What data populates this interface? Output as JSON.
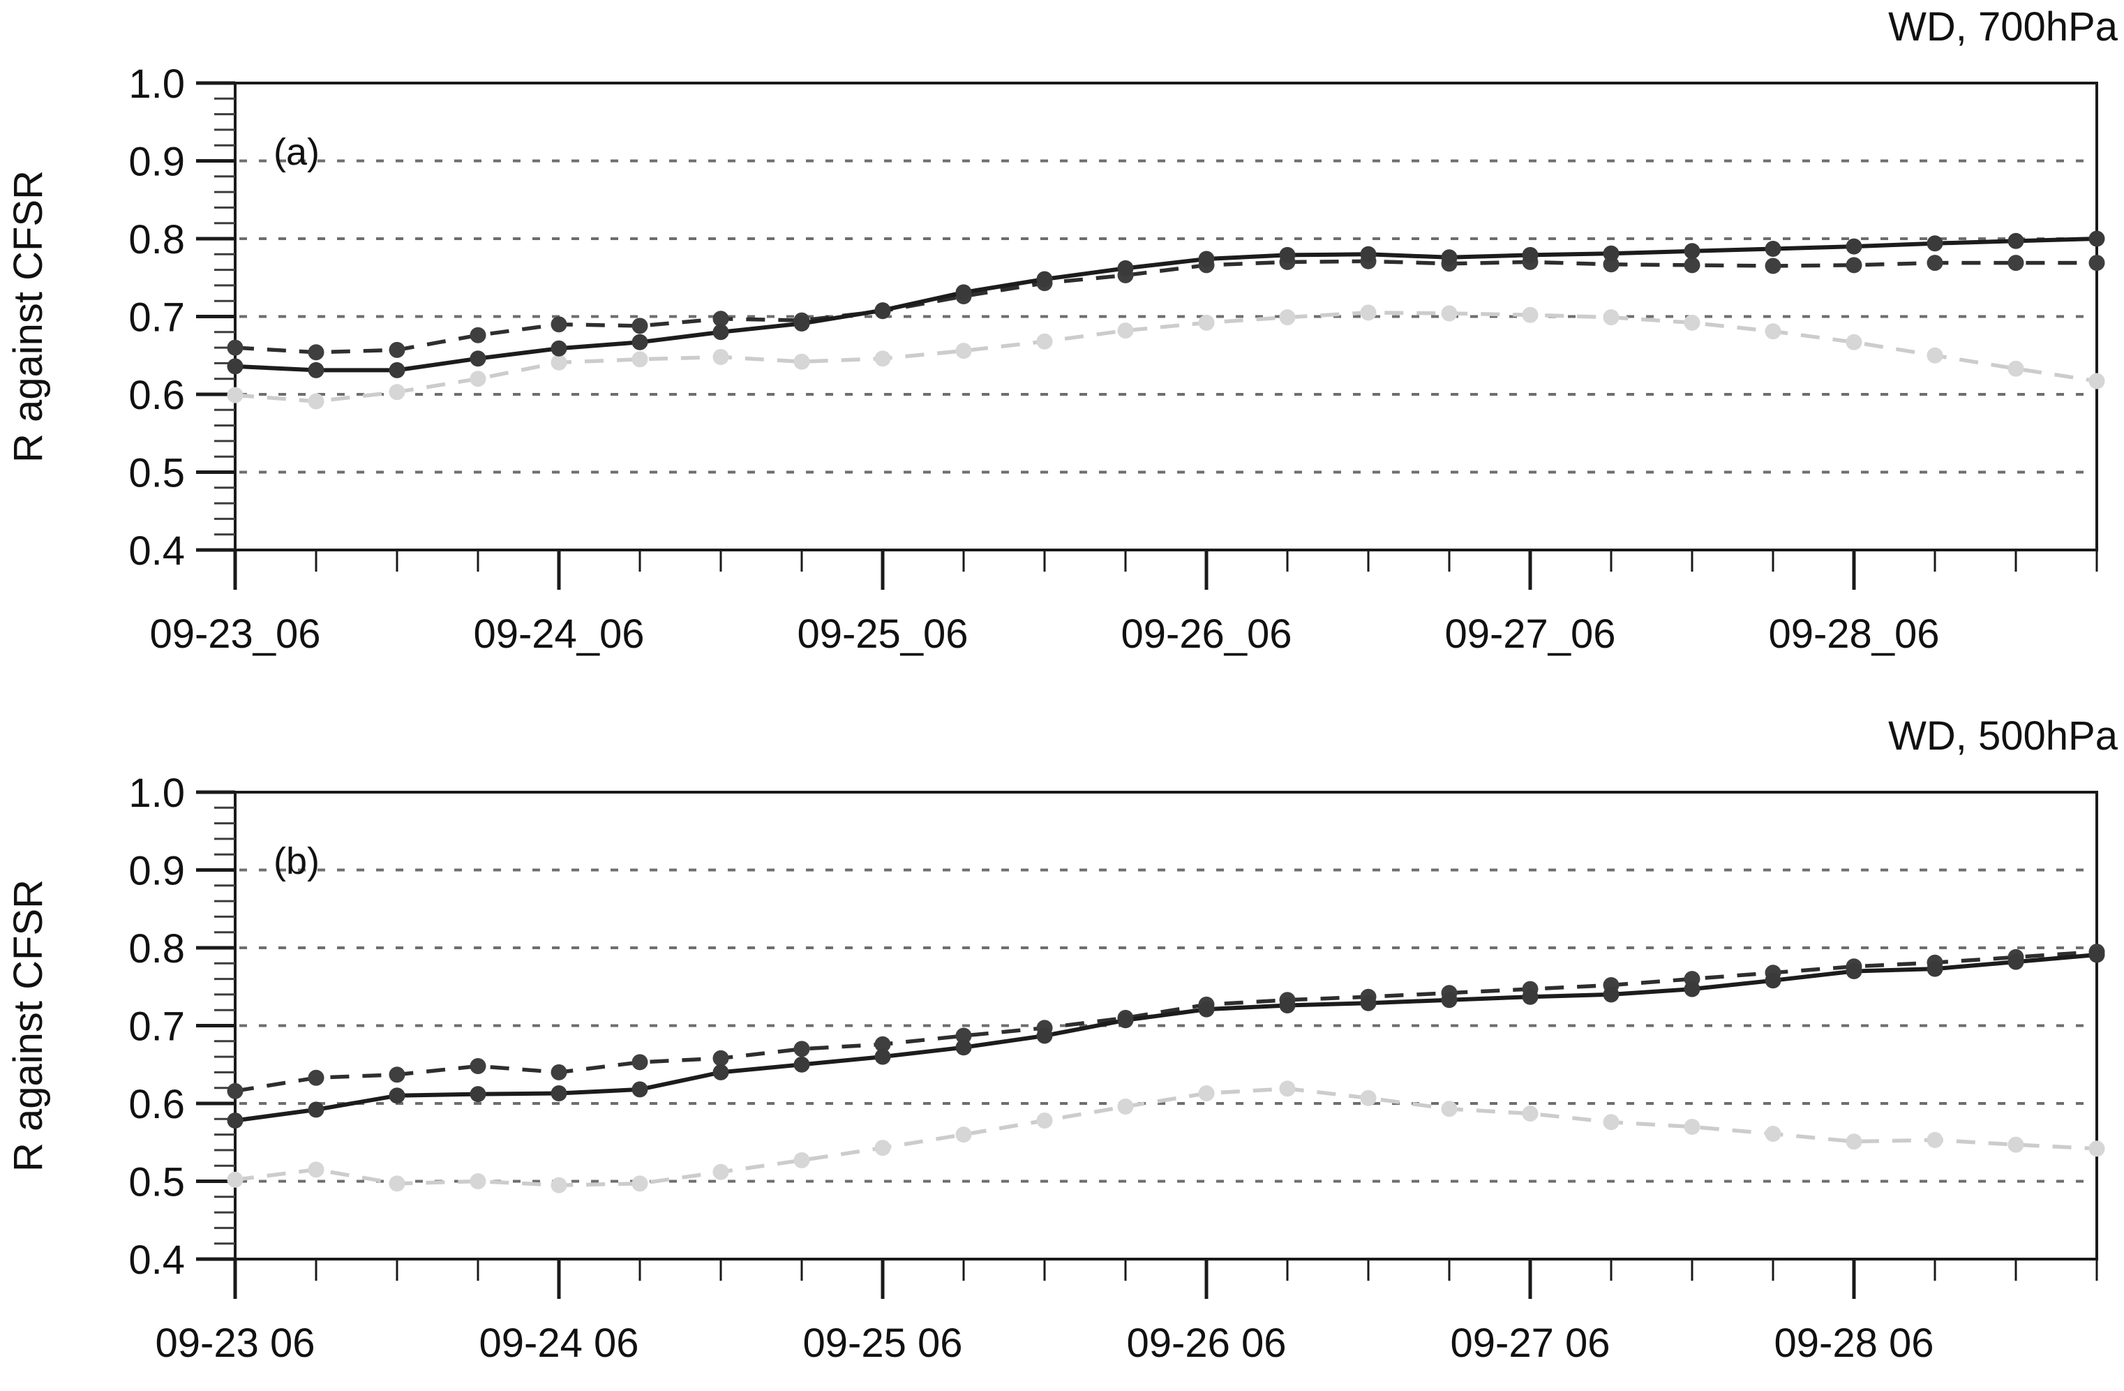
{
  "figure": {
    "background": "#ffffff",
    "axis_color": "#1a1a1a",
    "grid_color": "#6e6e6e",
    "text_color": "#111111"
  },
  "chart_data": [
    {
      "type": "line",
      "panel_label": "(a)",
      "title": "WD, 700hPa",
      "ylabel": "R against CFSR",
      "ylim": [
        0.4,
        1.0
      ],
      "ytick_interval": 0.1,
      "yminor_interval": 0.02,
      "ytick_labels": [
        "1.0",
        "0.9",
        "0.8",
        "0.7",
        "0.6",
        "0.5",
        "0.4"
      ],
      "grid_values": [
        0.9,
        0.8,
        0.7,
        0.6,
        0.5
      ],
      "grid_on": true,
      "legend": "none",
      "x_interval_hours": 6,
      "x": [
        "09-23_06",
        "09-23_12",
        "09-23_18",
        "09-24_00",
        "09-24_06",
        "09-24_12",
        "09-24_18",
        "09-25_00",
        "09-25_06",
        "09-25_12",
        "09-25_18",
        "09-26_00",
        "09-26_06",
        "09-26_12",
        "09-26_18",
        "09-27_00",
        "09-27_06",
        "09-27_12",
        "09-27_18",
        "09-28_00",
        "09-28_06",
        "09-28_12",
        "09-28_18",
        "09-29_00"
      ],
      "xtick_label_indices": [
        0,
        4,
        8,
        12,
        16,
        20
      ],
      "xtick_labels": [
        "09-23_06",
        "09-24_06",
        "09-25_06",
        "09-26_06",
        "09-27_06",
        "09-28_06"
      ],
      "series": [
        {
          "name": "solid-dark",
          "line_style": "solid",
          "color": "#1c1c1c",
          "marker_color": "#3a3a3a",
          "values": [
            0.636,
            0.631,
            0.631,
            0.646,
            0.659,
            0.667,
            0.68,
            0.691,
            0.708,
            0.731,
            0.748,
            0.762,
            0.774,
            0.779,
            0.78,
            0.776,
            0.779,
            0.781,
            0.784,
            0.787,
            0.79,
            0.794,
            0.797,
            0.8
          ]
        },
        {
          "name": "dashed-dark",
          "line_style": "dashed",
          "color": "#2e2e2e",
          "marker_color": "#3f3f3f",
          "values": [
            0.66,
            0.654,
            0.657,
            0.676,
            0.69,
            0.688,
            0.697,
            0.695,
            0.707,
            0.726,
            0.743,
            0.753,
            0.766,
            0.77,
            0.771,
            0.768,
            0.77,
            0.767,
            0.766,
            0.765,
            0.766,
            0.769,
            0.769,
            0.769
          ]
        },
        {
          "name": "dashed-light",
          "line_style": "dashed",
          "color": "#cccccc",
          "marker_color": "#d6d6d6",
          "values": [
            0.599,
            0.591,
            0.603,
            0.62,
            0.641,
            0.645,
            0.648,
            0.642,
            0.646,
            0.656,
            0.668,
            0.682,
            0.692,
            0.699,
            0.705,
            0.704,
            0.702,
            0.699,
            0.692,
            0.681,
            0.667,
            0.65,
            0.633,
            0.617
          ]
        }
      ]
    },
    {
      "type": "line",
      "panel_label": "(b)",
      "title": "WD, 500hPa",
      "ylabel": "R against CFSR",
      "ylim": [
        0.4,
        1.0
      ],
      "ytick_interval": 0.1,
      "yminor_interval": 0.02,
      "ytick_labels": [
        "1.0",
        "0.9",
        "0.8",
        "0.7",
        "0.6",
        "0.5",
        "0.4"
      ],
      "grid_values": [
        0.9,
        0.8,
        0.7,
        0.6,
        0.5
      ],
      "grid_on": true,
      "legend": "none",
      "x_interval_hours": 6,
      "x": [
        "09-23 06",
        "09-23 12",
        "09-23 18",
        "09-24 00",
        "09-24 06",
        "09-24 12",
        "09-24 18",
        "09-25 00",
        "09-25 06",
        "09-25 12",
        "09-25 18",
        "09-26 00",
        "09-26 06",
        "09-26 12",
        "09-26 18",
        "09-27 00",
        "09-27 06",
        "09-27 12",
        "09-27 18",
        "09-28 00",
        "09-28 06",
        "09-28 12",
        "09-28 18",
        "09-29 00"
      ],
      "xtick_label_indices": [
        0,
        4,
        8,
        12,
        16,
        20
      ],
      "xtick_labels": [
        "09-23 06",
        "09-24 06",
        "09-25 06",
        "09-26 06",
        "09-27 06",
        "09-28 06"
      ],
      "series": [
        {
          "name": "solid-dark",
          "line_style": "solid",
          "color": "#1c1c1c",
          "marker_color": "#3a3a3a",
          "values": [
            0.578,
            0.592,
            0.61,
            0.612,
            0.613,
            0.618,
            0.64,
            0.65,
            0.66,
            0.672,
            0.687,
            0.707,
            0.721,
            0.726,
            0.729,
            0.733,
            0.737,
            0.74,
            0.747,
            0.758,
            0.77,
            0.773,
            0.782,
            0.791
          ]
        },
        {
          "name": "dashed-dark",
          "line_style": "dashed",
          "color": "#2e2e2e",
          "marker_color": "#3f3f3f",
          "values": [
            0.616,
            0.633,
            0.637,
            0.648,
            0.64,
            0.653,
            0.658,
            0.67,
            0.676,
            0.687,
            0.697,
            0.71,
            0.727,
            0.733,
            0.737,
            0.742,
            0.747,
            0.752,
            0.76,
            0.768,
            0.776,
            0.781,
            0.788,
            0.795
          ]
        },
        {
          "name": "dashed-light",
          "line_style": "dashed",
          "color": "#cccccc",
          "marker_color": "#d6d6d6",
          "values": [
            0.502,
            0.515,
            0.497,
            0.5,
            0.495,
            0.497,
            0.512,
            0.527,
            0.543,
            0.56,
            0.578,
            0.596,
            0.613,
            0.619,
            0.607,
            0.593,
            0.587,
            0.576,
            0.57,
            0.561,
            0.551,
            0.553,
            0.547,
            0.542
          ]
        }
      ]
    }
  ]
}
